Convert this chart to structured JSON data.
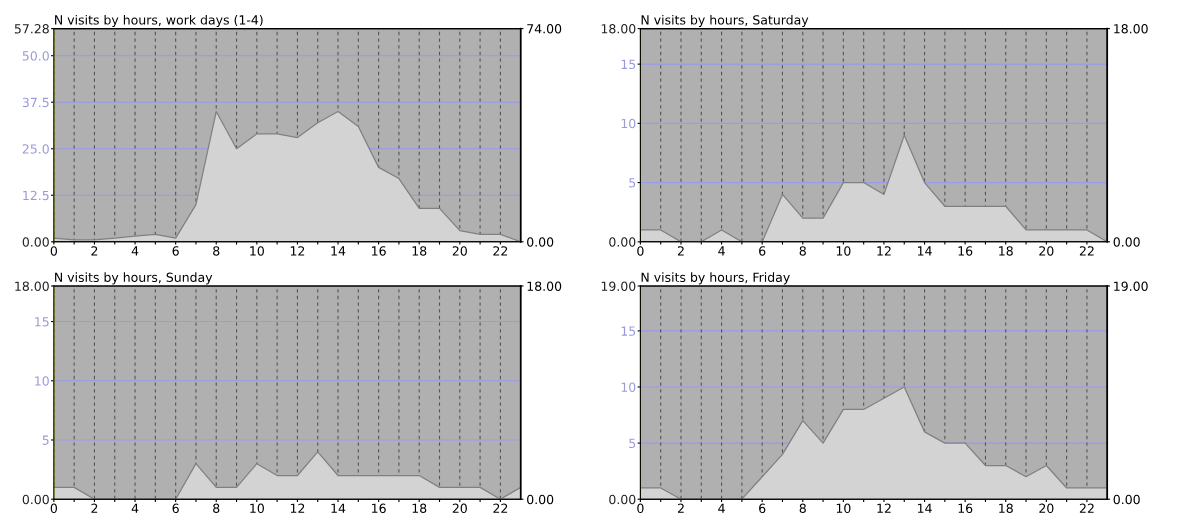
{
  "chart_data": [
    {
      "type": "area",
      "title": "N visits by hours, work days (1-4)",
      "x": [
        0,
        1,
        2,
        3,
        4,
        5,
        6,
        7,
        8,
        9,
        10,
        11,
        12,
        13,
        14,
        15,
        16,
        17,
        18,
        19,
        20,
        21,
        22,
        23
      ],
      "series": [
        {
          "color": "#d3d3d3",
          "values": [
            1,
            0.5,
            0.5,
            1,
            1.5,
            2,
            1,
            10,
            35,
            25,
            29,
            29,
            28,
            32,
            35,
            31,
            20,
            17,
            9,
            9,
            3,
            2,
            2,
            0
          ]
        }
      ],
      "xlim": [
        0,
        23
      ],
      "xticks": [
        0,
        {
          "value": 1,
          "label": null
        },
        2,
        {
          "value": 3,
          "label": null
        },
        4,
        {
          "value": 5,
          "label": null
        },
        6,
        {
          "value": 7,
          "label": null
        },
        8,
        {
          "value": 9,
          "label": null
        },
        10,
        {
          "value": 11,
          "label": null
        },
        12,
        {
          "value": 13,
          "label": null
        },
        14,
        {
          "value": 15,
          "label": null
        },
        16,
        {
          "value": 17,
          "label": null
        },
        18,
        {
          "value": 19,
          "label": null
        },
        20,
        {
          "value": 21,
          "label": null
        },
        22
      ],
      "ylim": [
        0,
        57.28
      ],
      "yticks": [
        {
          "value": 0,
          "label": "0.00"
        },
        12.5,
        {
          "value": 25,
          "label": "25.0"
        },
        37.5,
        {
          "value": 50,
          "label": "50.0"
        },
        {
          "value": 57.28,
          "label": "57.28"
        }
      ],
      "y2lim": [
        0,
        74
      ],
      "y2ticks": [
        {
          "value": 0,
          "label": "0.00"
        },
        {
          "value": 74,
          "label": "74.00"
        }
      ],
      "grid": true
    },
    {
      "type": "area",
      "title": "N visits by hours, Saturday",
      "x": [
        0,
        1,
        2,
        3,
        4,
        5,
        6,
        7,
        8,
        9,
        10,
        11,
        12,
        13,
        14,
        15,
        16,
        17,
        18,
        19,
        20,
        21,
        22,
        23
      ],
      "series": [
        {
          "color": "#d3d3d3",
          "values": [
            1,
            1,
            0,
            0,
            1,
            0,
            0,
            4,
            2,
            2,
            5,
            5,
            4,
            9,
            5,
            3,
            3,
            3,
            3,
            1,
            1,
            1,
            1,
            0
          ]
        }
      ],
      "xlim": [
        0,
        23
      ],
      "xticks": [
        0,
        {
          "value": 1,
          "label": null
        },
        2,
        {
          "value": 3,
          "label": null
        },
        4,
        {
          "value": 5,
          "label": null
        },
        6,
        {
          "value": 7,
          "label": null
        },
        8,
        {
          "value": 9,
          "label": null
        },
        10,
        {
          "value": 11,
          "label": null
        },
        12,
        {
          "value": 13,
          "label": null
        },
        14,
        {
          "value": 15,
          "label": null
        },
        16,
        {
          "value": 17,
          "label": null
        },
        18,
        {
          "value": 19,
          "label": null
        },
        20,
        {
          "value": 21,
          "label": null
        },
        22
      ],
      "ylim": [
        0,
        18
      ],
      "yticks": [
        {
          "value": 0,
          "label": "0.00"
        },
        5,
        10,
        15,
        {
          "value": 18,
          "label": "18.00"
        }
      ],
      "y2lim": [
        0,
        18
      ],
      "y2ticks": [
        {
          "value": 0,
          "label": "0.00"
        },
        {
          "value": 18,
          "label": "18.00"
        }
      ],
      "grid": true
    },
    {
      "type": "area",
      "title": "N visits by hours, Sunday",
      "x": [
        0,
        1,
        2,
        3,
        4,
        5,
        6,
        7,
        8,
        9,
        10,
        11,
        12,
        13,
        14,
        15,
        16,
        17,
        18,
        19,
        20,
        21,
        22,
        23
      ],
      "series": [
        {
          "color": "#d3d3d3",
          "values": [
            1,
            1,
            0,
            0,
            0,
            0,
            0,
            3,
            1,
            1,
            3,
            2,
            2,
            4,
            2,
            2,
            2,
            2,
            2,
            1,
            1,
            1,
            0,
            1
          ]
        }
      ],
      "xlim": [
        0,
        23
      ],
      "xticks": [
        0,
        {
          "value": 1,
          "label": null
        },
        2,
        {
          "value": 3,
          "label": null
        },
        4,
        {
          "value": 5,
          "label": null
        },
        6,
        {
          "value": 7,
          "label": null
        },
        8,
        {
          "value": 9,
          "label": null
        },
        10,
        {
          "value": 11,
          "label": null
        },
        12,
        {
          "value": 13,
          "label": null
        },
        14,
        {
          "value": 15,
          "label": null
        },
        16,
        {
          "value": 17,
          "label": null
        },
        18,
        {
          "value": 19,
          "label": null
        },
        20,
        {
          "value": 21,
          "label": null
        },
        22
      ],
      "ylim": [
        0,
        18
      ],
      "yticks": [
        {
          "value": 0,
          "label": "0.00"
        },
        5,
        10,
        15,
        {
          "value": 18,
          "label": "18.00"
        }
      ],
      "y2lim": [
        0,
        18
      ],
      "y2ticks": [
        {
          "value": 0,
          "label": "0.00"
        },
        {
          "value": 18,
          "label": "18.00"
        }
      ],
      "grid": true
    },
    {
      "type": "area",
      "title": "N visits by hours, Friday",
      "x": [
        0,
        1,
        2,
        3,
        4,
        5,
        6,
        7,
        8,
        9,
        10,
        11,
        12,
        13,
        14,
        15,
        16,
        17,
        18,
        19,
        20,
        21,
        22,
        23
      ],
      "series": [
        {
          "color": "#d3d3d3",
          "values": [
            1,
            1,
            0,
            0,
            0,
            0,
            2,
            4,
            7,
            5,
            8,
            8,
            9,
            10,
            6,
            5,
            5,
            3,
            3,
            2,
            3,
            1,
            1,
            1
          ]
        }
      ],
      "xlim": [
        0,
        23
      ],
      "xticks": [
        0,
        {
          "value": 1,
          "label": null
        },
        2,
        {
          "value": 3,
          "label": null
        },
        4,
        {
          "value": 5,
          "label": null
        },
        6,
        {
          "value": 7,
          "label": null
        },
        8,
        {
          "value": 9,
          "label": null
        },
        10,
        {
          "value": 11,
          "label": null
        },
        12,
        {
          "value": 13,
          "label": null
        },
        14,
        {
          "value": 15,
          "label": null
        },
        16,
        {
          "value": 17,
          "label": null
        },
        18,
        {
          "value": 19,
          "label": null
        },
        20,
        {
          "value": 21,
          "label": null
        },
        22
      ],
      "ylim": [
        0,
        19
      ],
      "yticks": [
        {
          "value": 0,
          "label": "0.00"
        },
        5,
        10,
        15,
        {
          "value": 19,
          "label": "19.00"
        }
      ],
      "y2lim": [
        0,
        19
      ],
      "y2ticks": [
        {
          "value": 0,
          "label": "0.00"
        },
        {
          "value": 19,
          "label": "19.00"
        }
      ],
      "grid": true
    }
  ]
}
